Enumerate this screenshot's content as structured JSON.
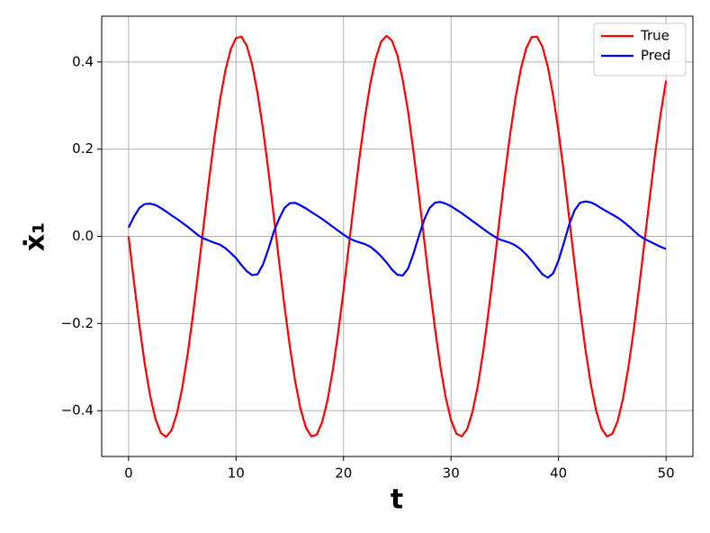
{
  "chart_data": {
    "type": "line",
    "xlabel": "t",
    "ylabel": "ẋ₁",
    "x": [
      0,
      0.5,
      1,
      1.5,
      2,
      2.5,
      3,
      3.5,
      4,
      4.5,
      5,
      5.5,
      6,
      6.5,
      7,
      7.5,
      8,
      8.5,
      9,
      9.5,
      10,
      10.5,
      11,
      11.5,
      12,
      12.5,
      13,
      13.5,
      14,
      14.5,
      15,
      15.5,
      16,
      16.5,
      17,
      17.5,
      18,
      18.5,
      19,
      19.5,
      20,
      20.5,
      21,
      21.5,
      22,
      22.5,
      23,
      23.5,
      24,
      24.5,
      25,
      25.5,
      26,
      26.5,
      27,
      27.5,
      28,
      28.5,
      29,
      29.5,
      30,
      30.5,
      31,
      31.5,
      32,
      32.5,
      33,
      33.5,
      34,
      34.5,
      35,
      35.5,
      36,
      36.5,
      37,
      37.5,
      38,
      38.5,
      39,
      39.5,
      40,
      40.5,
      41,
      41.5,
      42,
      42.5,
      43,
      43.5,
      44,
      44.5,
      45,
      45.5,
      46,
      46.5,
      47,
      47.5,
      48,
      48.5,
      49,
      49.5,
      50
    ],
    "series": [
      {
        "name": "True",
        "color": "#ff0000",
        "values": [
          0,
          -0.104,
          -0.203,
          -0.292,
          -0.365,
          -0.419,
          -0.451,
          -0.46,
          -0.445,
          -0.406,
          -0.347,
          -0.27,
          -0.178,
          -0.077,
          0.028,
          0.132,
          0.228,
          0.312,
          0.38,
          0.429,
          0.455,
          0.458,
          0.437,
          0.393,
          0.328,
          0.247,
          0.152,
          0.048,
          -0.057,
          -0.159,
          -0.252,
          -0.333,
          -0.396,
          -0.439,
          -0.459,
          -0.455,
          -0.427,
          -0.377,
          -0.307,
          -0.221,
          -0.124,
          -0.02,
          0.084,
          0.184,
          0.275,
          0.352,
          0.409,
          0.447,
          0.46,
          0.449,
          0.416,
          0.359,
          0.287,
          0.195,
          0.096,
          -0.008,
          -0.112,
          -0.21,
          -0.298,
          -0.369,
          -0.422,
          -0.453,
          -0.459,
          -0.442,
          -0.402,
          -0.342,
          -0.263,
          -0.17,
          -0.068,
          0.036,
          0.14,
          0.235,
          0.318,
          0.385,
          0.432,
          0.457,
          0.458,
          0.435,
          0.389,
          0.323,
          0.24,
          0.145,
          0.04,
          -0.065,
          -0.166,
          -0.259,
          -0.339,
          -0.4,
          -0.441,
          -0.459,
          -0.453,
          -0.424,
          -0.372,
          -0.3,
          -0.214,
          -0.116,
          -0.012,
          0.092,
          0.192,
          0.281,
          0.357
        ]
      },
      {
        "name": "Pred",
        "color": "#0000ff",
        "values": [
          0.02,
          0.045,
          0.065,
          0.074,
          0.075,
          0.072,
          0.065,
          0.057,
          0.048,
          0.04,
          0.031,
          0.022,
          0.012,
          0.002,
          -0.005,
          -0.01,
          -0.015,
          -0.019,
          -0.027,
          -0.038,
          -0.05,
          -0.066,
          -0.08,
          -0.089,
          -0.087,
          -0.065,
          -0.03,
          0.01,
          0.04,
          0.065,
          0.076,
          0.077,
          0.071,
          0.064,
          0.056,
          0.048,
          0.04,
          0.031,
          0.022,
          0.013,
          0.004,
          -0.004,
          -0.01,
          -0.014,
          -0.018,
          -0.024,
          -0.034,
          -0.046,
          -0.06,
          -0.076,
          -0.088,
          -0.09,
          -0.074,
          -0.04,
          0,
          0.038,
          0.065,
          0.077,
          0.079,
          0.075,
          0.069,
          0.061,
          0.053,
          0.044,
          0.035,
          0.026,
          0.017,
          0.008,
          0,
          -0.007,
          -0.011,
          -0.015,
          -0.021,
          -0.03,
          -0.042,
          -0.056,
          -0.072,
          -0.087,
          -0.095,
          -0.085,
          -0.055,
          -0.015,
          0.028,
          0.06,
          0.077,
          0.08,
          0.078,
          0.072,
          0.064,
          0.057,
          0.05,
          0.043,
          0.034,
          0.024,
          0.013,
          0.002,
          -0.006,
          -0.012,
          -0.018,
          -0.024,
          -0.029
        ]
      }
    ],
    "xlim": [
      -2.5,
      52.5
    ],
    "ylim": [
      -0.505,
      0.505
    ],
    "xticks": [
      0,
      10,
      20,
      30,
      40,
      50
    ],
    "yticks": [
      {
        "value": -0.4,
        "label": "−0.4"
      },
      {
        "value": -0.2,
        "label": "−0.2"
      },
      {
        "value": 0,
        "label": "0.0"
      },
      0.2,
      0.4
    ],
    "grid": true,
    "legend": "upper right"
  }
}
